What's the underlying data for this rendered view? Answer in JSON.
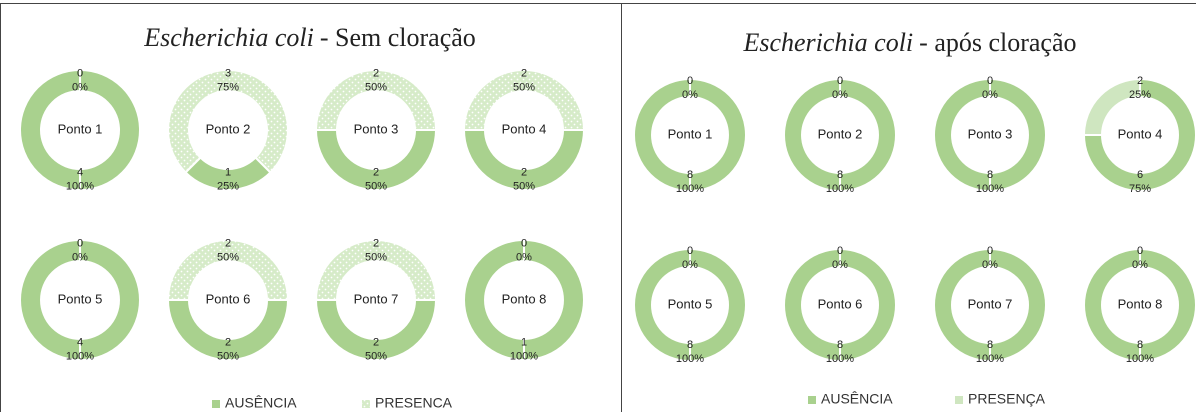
{
  "chart_data": [
    {
      "type": "donut",
      "title": {
        "species": "Escherichia coli",
        "text": "- Sem cloração"
      },
      "categories": [
        "Ponto 1",
        "Ponto 2",
        "Ponto 3",
        "Ponto 4",
        "Ponto 5",
        "Ponto 6",
        "Ponto 7",
        "Ponto 8"
      ],
      "series": [
        {
          "name": "AUSÊNCIA",
          "color": "#a9d18e",
          "values": [
            4,
            1,
            2,
            2,
            4,
            2,
            2,
            1
          ],
          "percent_labels": [
            "100%",
            "25%",
            "50%",
            "50%",
            "100%",
            "50%",
            "50%",
            "100%"
          ]
        },
        {
          "name": "PRESENCA",
          "color": "#cfe6c0",
          "values": [
            0,
            3,
            2,
            2,
            0,
            2,
            2,
            0
          ],
          "percent_labels": [
            "0%",
            "75%",
            "50%",
            "50%",
            "0%",
            "50%",
            "50%",
            "0%"
          ]
        }
      ]
    },
    {
      "type": "donut",
      "title": {
        "species": "Escherichia coli",
        "text": "- após cloração"
      },
      "categories": [
        "Ponto 1",
        "Ponto 2",
        "Ponto 3",
        "Ponto 4",
        "Ponto 5",
        "Ponto 6",
        "Ponto 7",
        "Ponto 8"
      ],
      "series": [
        {
          "name": "AUSÊNCIA",
          "color": "#a9d18e",
          "values": [
            8,
            8,
            8,
            6,
            8,
            8,
            8,
            8
          ],
          "percent_labels": [
            "100%",
            "100%",
            "100%",
            "75%",
            "100%",
            "100%",
            "100%",
            "100%"
          ]
        },
        {
          "name": "PRESENÇA",
          "color": "#cfe6c0",
          "values": [
            0,
            0,
            0,
            2,
            0,
            0,
            0,
            0
          ],
          "percent_labels": [
            "0%",
            "0%",
            "0%",
            "25%",
            "0%",
            "0%",
            "0%",
            "0%"
          ]
        }
      ]
    }
  ]
}
